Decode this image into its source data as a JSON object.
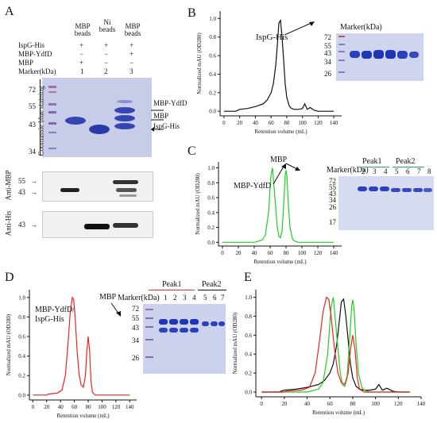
{
  "panels": {
    "A": {
      "label": "A",
      "columns": [
        {
          "head": "MBP beads",
          "lane": "1"
        },
        {
          "head": "Ni beads",
          "lane": "2"
        },
        {
          "head": "MBP beads",
          "lane": "3"
        }
      ],
      "rows": [
        {
          "name": "IspG-His",
          "values": [
            "+",
            "+",
            "+"
          ]
        },
        {
          "name": "MBP-YdfD",
          "values": [
            "−",
            "−",
            "+"
          ]
        },
        {
          "name": "MBP",
          "values": [
            "+",
            "−",
            "−"
          ]
        }
      ],
      "marker_label": "Marker(kDa)",
      "markers_cbb": [
        "72",
        "55",
        "43",
        "34"
      ],
      "stain_label": "Coomassie blue staining",
      "band_labels": [
        "MBP-YdfD",
        "MBP",
        "IspG-His"
      ],
      "wb1_label": "Anti-MBP",
      "wb1_markers": [
        "55",
        "43"
      ],
      "wb2_label": "Anti-His",
      "wb2_markers": [
        "43"
      ]
    },
    "B": {
      "label": "B",
      "annotation": "IspG-His",
      "marker_label": "Marker(kDa)",
      "gel_markers": [
        "72",
        "55",
        "43",
        "34",
        "26"
      ]
    },
    "C": {
      "label": "C",
      "annotations": [
        "MBP",
        "MBP-YdfD"
      ],
      "marker_label": "Marker(kDa)",
      "peak1": "Peak1",
      "peak2": "Peak2",
      "lanes": [
        "2",
        "3",
        "4",
        "5",
        "6",
        "7",
        "8"
      ],
      "gel_markers": [
        "72",
        "55",
        "43",
        "34",
        "26",
        "17"
      ]
    },
    "D": {
      "label": "D",
      "annotations": [
        "MBP-YdfD/",
        "IspG-His",
        "MBP"
      ],
      "marker_label": "Marker(kDa)",
      "peak1": "Peak1",
      "peak2": "Peak2",
      "lanes": [
        "1",
        "2",
        "3",
        "4",
        "5",
        "6",
        "7"
      ],
      "gel_markers": [
        "72",
        "55",
        "43",
        "34",
        "26"
      ]
    },
    "E": {
      "label": "E"
    }
  },
  "chart_data": [
    {
      "type": "line",
      "panel": "B",
      "xlabel": "Retention volume (mL)",
      "ylabel": "Normalized mAU (OD280)",
      "xticks": [
        "0",
        "20",
        "40",
        "60",
        "80",
        "100",
        "120",
        "140"
      ],
      "yticks": [
        "0.0",
        "0.2",
        "0.4",
        "0.6",
        "0.8",
        "1.0"
      ],
      "xlim": [
        -5,
        150
      ],
      "ylim": [
        -0.05,
        1.08
      ],
      "series": [
        {
          "color": "#111111",
          "x": [
            0,
            15,
            20,
            30,
            40,
            50,
            55,
            60,
            63,
            66,
            68,
            70,
            72,
            74,
            76,
            78,
            80,
            83,
            86,
            90,
            95,
            100,
            103,
            106,
            110,
            115,
            120,
            130,
            140
          ],
          "y": [
            0,
            0,
            0.02,
            0.03,
            0.05,
            0.08,
            0.12,
            0.2,
            0.3,
            0.5,
            0.72,
            0.95,
            0.98,
            0.8,
            0.55,
            0.3,
            0.15,
            0.06,
            0.03,
            0.02,
            0.02,
            0.03,
            0.08,
            0.02,
            0.04,
            0.01,
            0,
            0,
            0
          ]
        }
      ]
    },
    {
      "type": "line",
      "panel": "C",
      "xlabel": "Retention volume (mL)",
      "ylabel": "Normalized mAU (OD280)",
      "xticks": [
        "0",
        "20",
        "40",
        "60",
        "80",
        "100",
        "120",
        "140"
      ],
      "yticks": [
        "0.0",
        "0.2",
        "0.4",
        "0.6",
        "0.8",
        "1.0"
      ],
      "xlim": [
        -5,
        150
      ],
      "ylim": [
        -0.05,
        1.08
      ],
      "series": [
        {
          "color": "#22cc22",
          "x": [
            0,
            20,
            40,
            50,
            54,
            58,
            61,
            63,
            66,
            69,
            71,
            73,
            75,
            77,
            79,
            80,
            81,
            83,
            85,
            88,
            90,
            95,
            100,
            120,
            140
          ],
          "y": [
            0,
            0,
            0,
            0.03,
            0.1,
            0.4,
            0.9,
            1.0,
            0.6,
            0.2,
            0.08,
            0.06,
            0.15,
            0.5,
            0.9,
            0.97,
            0.9,
            0.5,
            0.2,
            0.05,
            0.02,
            0,
            0,
            0,
            0
          ]
        }
      ]
    },
    {
      "type": "line",
      "panel": "D",
      "xlabel": "Retention volume (mL)",
      "ylabel": "Normalized mAU (OD280)",
      "xticks": [
        "0",
        "20",
        "40",
        "60",
        "80",
        "100",
        "120",
        "140"
      ],
      "yticks": [
        "0.0",
        "0.2",
        "0.4",
        "0.6",
        "0.8",
        "1.0"
      ],
      "xlim": [
        -5,
        150
      ],
      "ylim": [
        -0.05,
        1.08
      ],
      "series": [
        {
          "color": "#ee2222",
          "x": [
            0,
            20,
            22,
            35,
            42,
            47,
            51,
            54,
            57,
            59,
            61,
            64,
            67,
            70,
            73,
            76,
            78,
            80,
            82,
            84,
            86,
            90,
            95,
            100,
            120,
            140
          ],
          "y": [
            0,
            0,
            0.01,
            0.02,
            0.05,
            0.2,
            0.55,
            0.85,
            1.0,
            0.98,
            0.8,
            0.45,
            0.2,
            0.1,
            0.08,
            0.2,
            0.45,
            0.6,
            0.45,
            0.15,
            0.03,
            0,
            0,
            0,
            0,
            0
          ]
        }
      ]
    },
    {
      "type": "line",
      "panel": "E",
      "xlabel": "Retention volume (mL)",
      "ylabel": "Normalized mAU (OD280)",
      "xticks": [
        "0",
        "20",
        "40",
        "60",
        "80",
        "100",
        "120",
        "140"
      ],
      "yticks": [
        "0.0",
        "0.2",
        "0.4",
        "0.6",
        "0.8",
        "1.0"
      ],
      "xlim": [
        -5,
        140
      ],
      "ylim": [
        -0.05,
        1.08
      ],
      "series": [
        {
          "color": "#111111",
          "x": [
            0,
            15,
            20,
            30,
            40,
            50,
            55,
            60,
            63,
            66,
            68,
            70,
            72,
            74,
            76,
            78,
            80,
            83,
            86,
            90,
            95,
            100,
            103,
            106,
            110,
            115,
            120,
            130
          ],
          "y": [
            0,
            0,
            0.02,
            0.03,
            0.05,
            0.08,
            0.12,
            0.2,
            0.3,
            0.5,
            0.72,
            0.95,
            0.98,
            0.8,
            0.55,
            0.3,
            0.15,
            0.06,
            0.03,
            0.02,
            0.02,
            0.03,
            0.08,
            0.02,
            0.04,
            0.01,
            0,
            0
          ]
        },
        {
          "color": "#22cc22",
          "x": [
            0,
            20,
            40,
            50,
            54,
            58,
            61,
            63,
            66,
            69,
            71,
            73,
            75,
            77,
            79,
            80,
            81,
            83,
            85,
            88,
            90,
            95,
            100,
            120,
            130
          ],
          "y": [
            0,
            0,
            0,
            0.03,
            0.1,
            0.4,
            0.9,
            1.0,
            0.6,
            0.2,
            0.08,
            0.06,
            0.15,
            0.5,
            0.9,
            0.97,
            0.9,
            0.5,
            0.2,
            0.05,
            0.02,
            0,
            0,
            0,
            0
          ]
        },
        {
          "color": "#ee2222",
          "x": [
            0,
            20,
            22,
            35,
            42,
            47,
            51,
            54,
            57,
            59,
            61,
            64,
            67,
            70,
            73,
            76,
            78,
            80,
            82,
            84,
            86,
            90,
            95,
            100,
            120,
            130
          ],
          "y": [
            0,
            0,
            0.01,
            0.02,
            0.05,
            0.2,
            0.55,
            0.85,
            1.0,
            0.98,
            0.8,
            0.45,
            0.2,
            0.1,
            0.08,
            0.2,
            0.45,
            0.6,
            0.45,
            0.15,
            0.03,
            0,
            0,
            0,
            0,
            0
          ]
        }
      ]
    }
  ]
}
